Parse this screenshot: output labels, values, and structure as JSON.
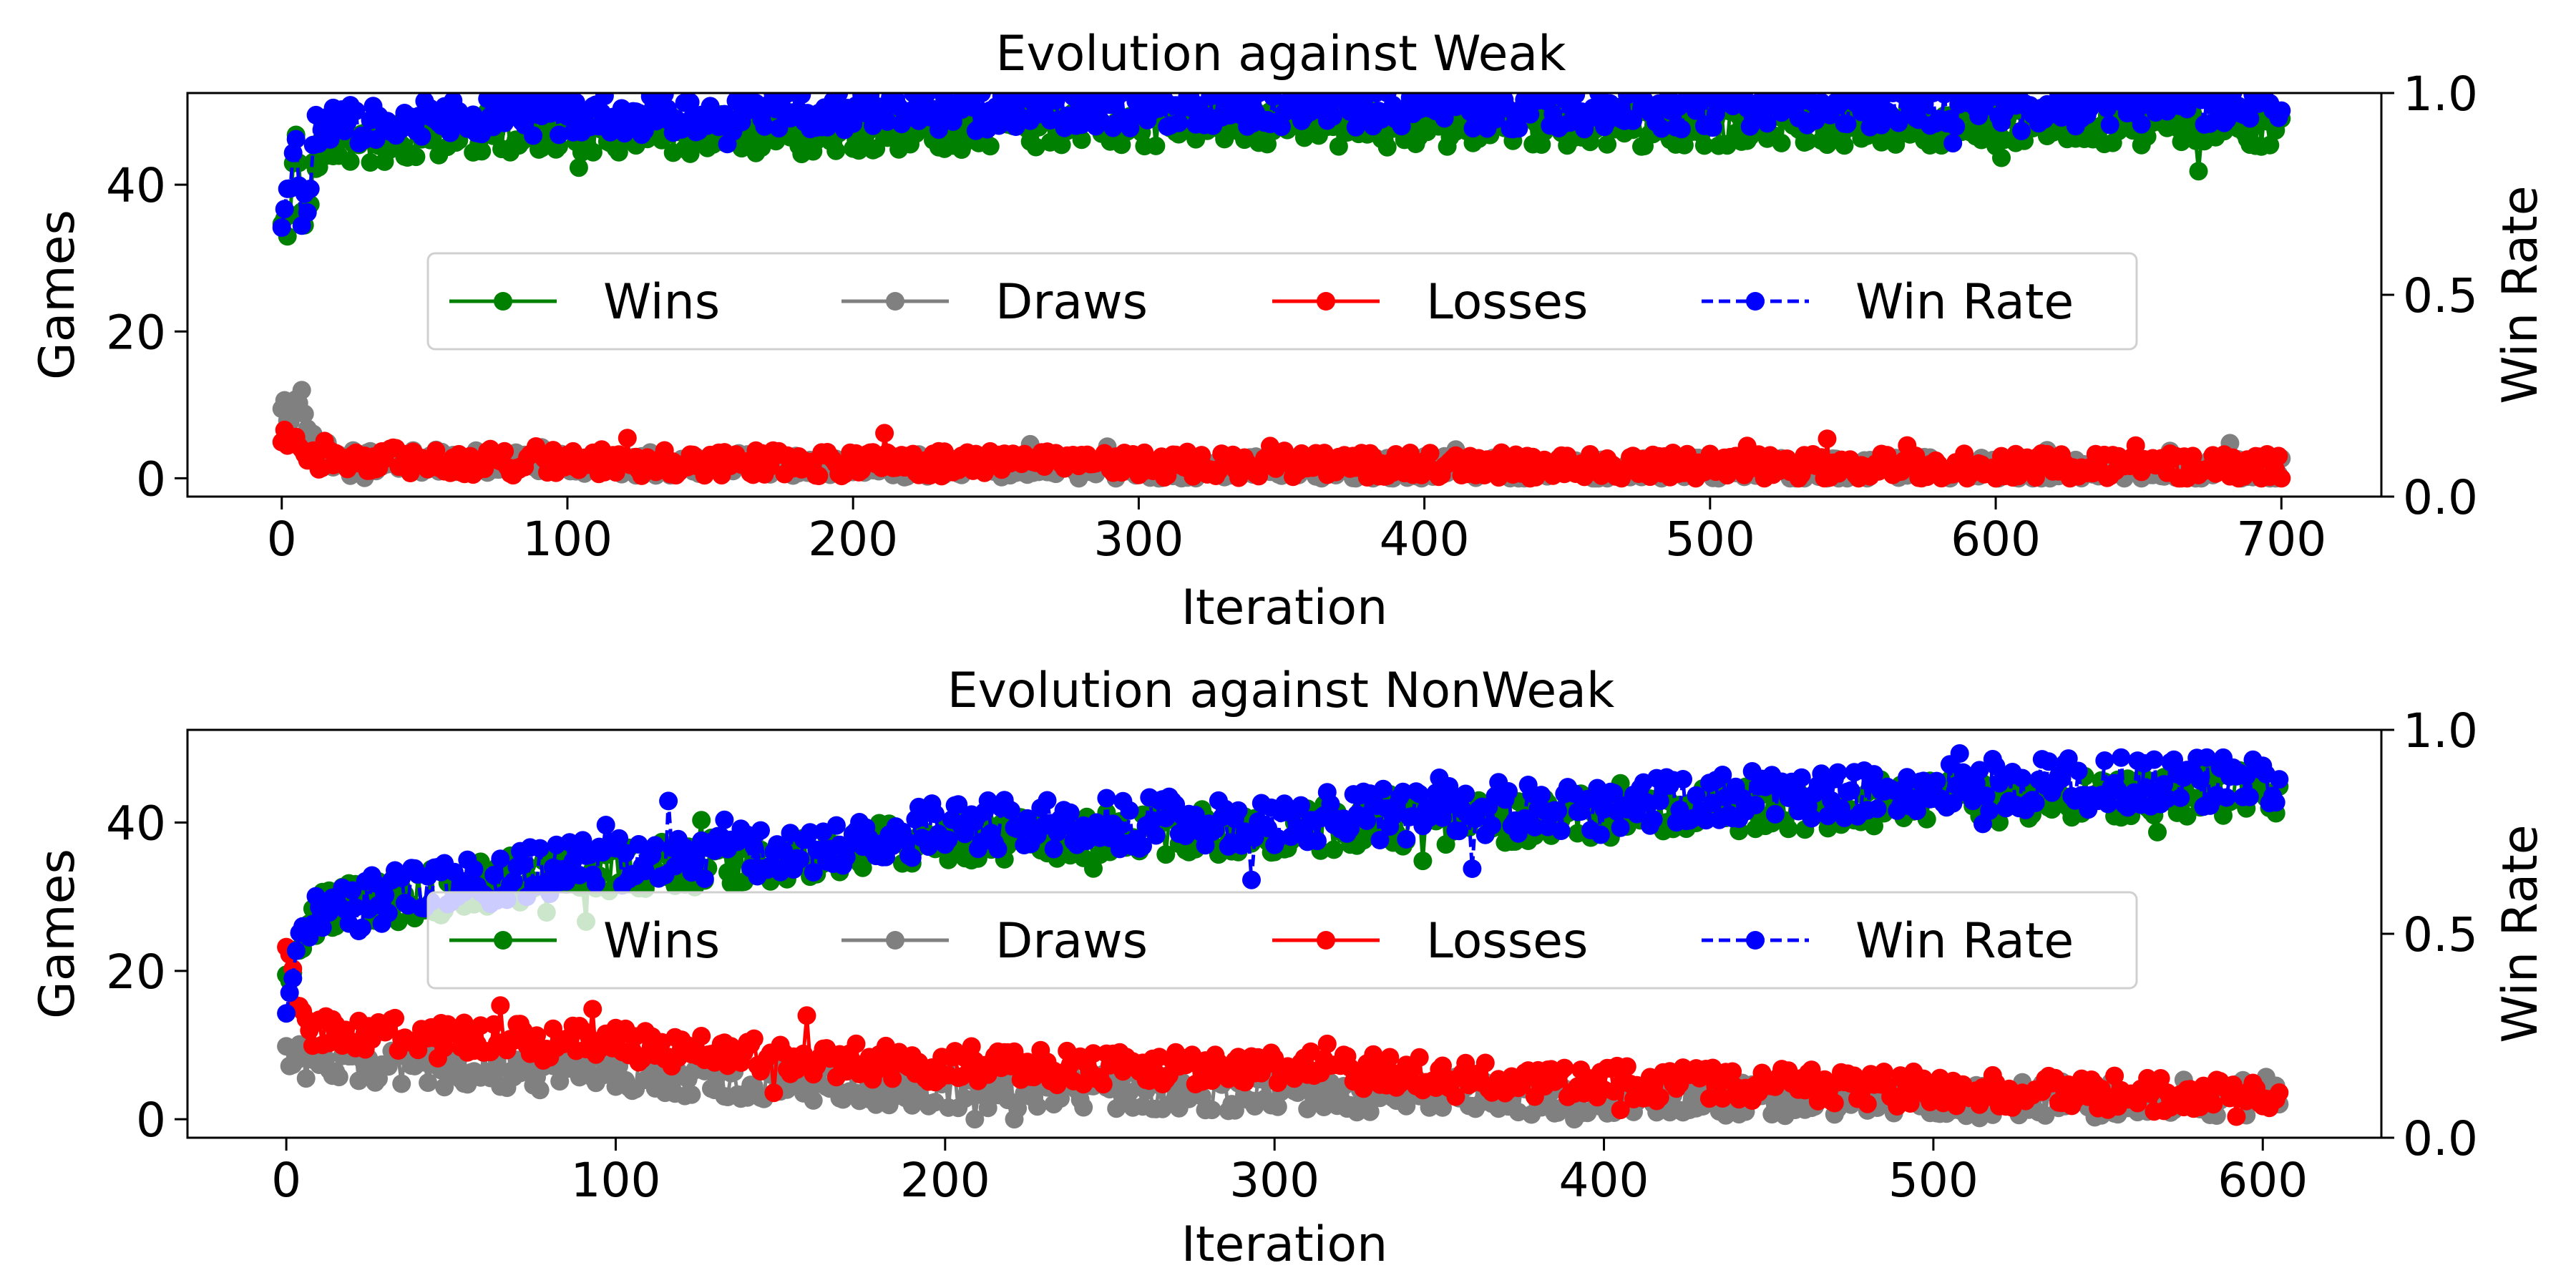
{
  "chart_data": [
    {
      "type": "line",
      "title": "Evolution against Weak",
      "xlabel": "Iteration",
      "ylabel": "Games",
      "y2label": "Win Rate",
      "xlim": [
        -33,
        735
      ],
      "ylim": [
        -2.5,
        52.5
      ],
      "y2lim": [
        0.0,
        1.0
      ],
      "xticks": [
        0,
        100,
        200,
        300,
        400,
        500,
        600,
        700
      ],
      "yticks": [
        0,
        20,
        40
      ],
      "y2ticks": [
        "0.0",
        "0.5",
        "1.0"
      ],
      "legend_position": "center",
      "n_iterations": 701,
      "series": [
        {
          "name": "Wins",
          "axis": "left",
          "color": "#008000",
          "style": "solid",
          "anchors": [
            [
              0,
              33
            ],
            [
              3,
              37
            ],
            [
              5,
              46
            ],
            [
              7,
              36
            ],
            [
              9,
              36
            ],
            [
              12,
              44
            ],
            [
              20,
              45
            ],
            [
              40,
              46
            ],
            [
              80,
              47
            ],
            [
              150,
              47
            ],
            [
              300,
              48
            ],
            [
              500,
              48
            ],
            [
              700,
              48
            ]
          ],
          "noise": 2.8,
          "ymax": 50
        },
        {
          "name": "Draws",
          "axis": "left",
          "color": "#808080",
          "style": "solid",
          "anchors": [
            [
              0,
              11
            ],
            [
              3,
              8
            ],
            [
              7,
              12
            ],
            [
              10,
              5
            ],
            [
              20,
              2.5
            ],
            [
              100,
              2
            ],
            [
              300,
              1.5
            ],
            [
              700,
              1.2
            ]
          ],
          "noise": 1.6,
          "ymax": 12
        },
        {
          "name": "Losses",
          "axis": "left",
          "color": "#ff0000",
          "style": "solid",
          "anchors": [
            [
              0,
              6
            ],
            [
              5,
              6
            ],
            [
              10,
              2.5
            ],
            [
              80,
              2.2
            ],
            [
              300,
              1.8
            ],
            [
              700,
              1.5
            ]
          ],
          "noise": 1.8,
          "ymax": 8
        },
        {
          "name": "Win Rate",
          "axis": "right",
          "color": "#0000ff",
          "style": "dashed",
          "anchors": [
            [
              0,
              0.66
            ],
            [
              3,
              0.75
            ],
            [
              5,
              0.92
            ],
            [
              7,
              0.72
            ],
            [
              9,
              0.7
            ],
            [
              12,
              0.9
            ],
            [
              20,
              0.92
            ],
            [
              40,
              0.93
            ],
            [
              80,
              0.94
            ],
            [
              150,
              0.95
            ],
            [
              300,
              0.96
            ],
            [
              500,
              0.96
            ],
            [
              700,
              0.97
            ]
          ],
          "noise": 0.05,
          "ymax": 1.0
        }
      ]
    },
    {
      "type": "line",
      "title": "Evolution against NonWeak",
      "xlabel": "Iteration",
      "ylabel": "Games",
      "y2label": "Win Rate",
      "xlim": [
        -30,
        636
      ],
      "ylim": [
        -2.5,
        52.5
      ],
      "y2lim": [
        0.0,
        1.0
      ],
      "xticks": [
        0,
        100,
        200,
        300,
        400,
        500,
        600
      ],
      "yticks": [
        0,
        20,
        40
      ],
      "y2ticks": [
        "0.0",
        "0.5",
        "1.0"
      ],
      "legend_position": "center",
      "n_iterations": 606,
      "series": [
        {
          "name": "Wins",
          "axis": "left",
          "color": "#008000",
          "style": "solid",
          "anchors": [
            [
              0,
              17
            ],
            [
              5,
              25
            ],
            [
              10,
              28
            ],
            [
              50,
              31
            ],
            [
              100,
              34
            ],
            [
              150,
              35
            ],
            [
              200,
              38
            ],
            [
              300,
              39
            ],
            [
              400,
              41
            ],
            [
              500,
              43
            ],
            [
              605,
              44
            ]
          ],
          "noise": 3.2,
          "ymax": 50
        },
        {
          "name": "Draws",
          "axis": "left",
          "color": "#808080",
          "style": "solid",
          "anchors": [
            [
              0,
              8
            ],
            [
              30,
              7
            ],
            [
              100,
              6
            ],
            [
              200,
              4
            ],
            [
              300,
              3.5
            ],
            [
              400,
              3
            ],
            [
              500,
              2.5
            ],
            [
              605,
              3
            ]
          ],
          "noise": 2.5,
          "ymax": 14
        },
        {
          "name": "Losses",
          "axis": "left",
          "color": "#ff0000",
          "style": "solid",
          "anchors": [
            [
              0,
              25
            ],
            [
              3,
              15
            ],
            [
              8,
              12
            ],
            [
              50,
              11
            ],
            [
              100,
              10
            ],
            [
              200,
              7
            ],
            [
              300,
              7
            ],
            [
              400,
              5
            ],
            [
              500,
              4
            ],
            [
              605,
              3
            ]
          ],
          "noise": 2.4,
          "ymax": 25
        },
        {
          "name": "Win Rate",
          "axis": "right",
          "color": "#0000ff",
          "style": "dashed",
          "anchors": [
            [
              0,
              0.34
            ],
            [
              5,
              0.5
            ],
            [
              10,
              0.55
            ],
            [
              50,
              0.62
            ],
            [
              100,
              0.68
            ],
            [
              150,
              0.7
            ],
            [
              200,
              0.76
            ],
            [
              300,
              0.78
            ],
            [
              400,
              0.82
            ],
            [
              500,
              0.86
            ],
            [
              605,
              0.88
            ]
          ],
          "noise": 0.065,
          "ymax": 1.0
        }
      ]
    }
  ]
}
